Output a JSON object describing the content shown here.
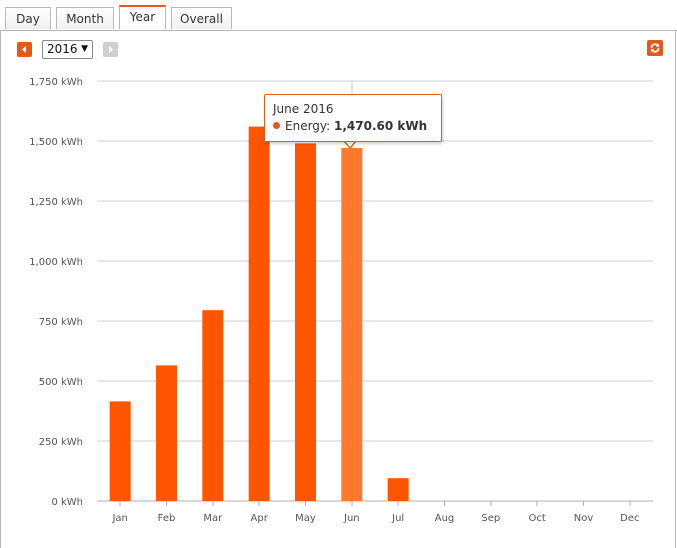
{
  "tabs": [
    {
      "label": "Day",
      "active": false
    },
    {
      "label": "Month",
      "active": false
    },
    {
      "label": "Year",
      "active": true
    },
    {
      "label": "Overall",
      "active": false
    }
  ],
  "controls": {
    "year_value": "2016",
    "prev_icon": "caret-left-icon",
    "next_icon": "caret-right-icon",
    "refresh_icon": "refresh-icon"
  },
  "colors": {
    "bar": "#ff5500",
    "bar_highlight": "#ff7a2e",
    "accent": "#e05a1e",
    "grid": "#d0d0d0"
  },
  "chart_data": {
    "type": "bar",
    "categories": [
      "Jan",
      "Feb",
      "Mar",
      "Apr",
      "May",
      "Jun",
      "Jul",
      "Aug",
      "Sep",
      "Oct",
      "Nov",
      "Dec"
    ],
    "values": [
      415,
      565,
      795,
      1560,
      1490,
      1470.6,
      95,
      0,
      0,
      0,
      0,
      0
    ],
    "yticks": [
      "0 kWh",
      "250 kWh",
      "500 kWh",
      "750 kWh",
      "1,000 kWh",
      "1,250 kWh",
      "1,500 kWh",
      "1,750 kWh"
    ],
    "ylim": [
      0,
      1750
    ],
    "ytick_step": 250,
    "grid": true,
    "highlight_index": 5,
    "tooltip": {
      "title": "June 2016",
      "series": "Energy:",
      "value": "1,470.60 kWh"
    }
  }
}
